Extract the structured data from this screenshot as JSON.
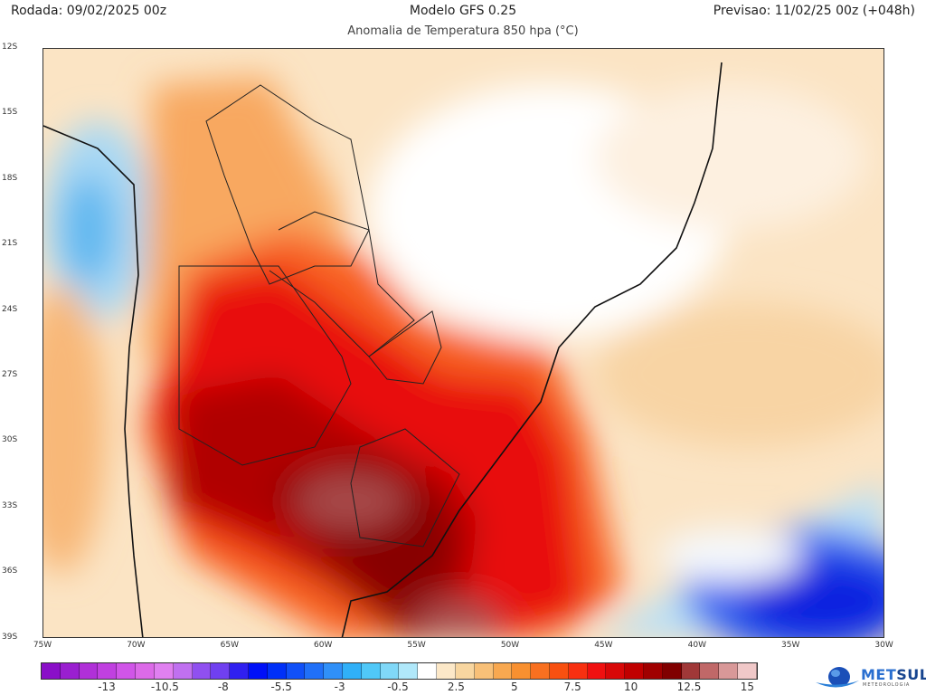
{
  "header": {
    "run": "Rodada: 09/02/2025 00z",
    "model": "Modelo GFS 0.25",
    "valid": "Previsao: 11/02/25 00z (+048h)",
    "subtitle": "Anomalia de Temperatura 850 hpa (°C)"
  },
  "map": {
    "lat_labels": [
      "12S",
      "15S",
      "18S",
      "21S",
      "24S",
      "27S",
      "30S",
      "33S",
      "36S",
      "39S"
    ],
    "lon_labels": [
      "75W",
      "70W",
      "65W",
      "60W",
      "55W",
      "50W",
      "45W",
      "40W",
      "35W",
      "30W"
    ],
    "lon_range": [
      -75,
      -30
    ],
    "lat_range": [
      -12,
      -39
    ]
  },
  "colorbar": {
    "ticks": [
      "-13",
      "-10.5",
      "-8",
      "-5.5",
      "-3",
      "-0.5",
      "2.5",
      "5",
      "7.5",
      "10",
      "12.5",
      "15"
    ],
    "colors": [
      "#8a0fc8",
      "#9a1fd0",
      "#b030d8",
      "#c040e0",
      "#d055e8",
      "#dc6ae8",
      "#e080f0",
      "#c070f0",
      "#9050f0",
      "#7040f0",
      "#3020f0",
      "#0010f8",
      "#0030f8",
      "#1050f8",
      "#2070f8",
      "#3090f8",
      "#30b0f8",
      "#50c8f8",
      "#80d8f8",
      "#b0e8fa",
      "#ffffff",
      "#fce8c8",
      "#f8d6a0",
      "#f8c078",
      "#f8a850",
      "#f89030",
      "#f87020",
      "#f85010",
      "#f83010",
      "#f01010",
      "#d80808",
      "#c00000",
      "#a00000",
      "#800000",
      "#a03838",
      "#c06868",
      "#d89898",
      "#f0c8c8"
    ]
  },
  "logo": {
    "brand_a": "MET",
    "brand_b": "SUL",
    "tagline": "METEOROLOGIA"
  }
}
